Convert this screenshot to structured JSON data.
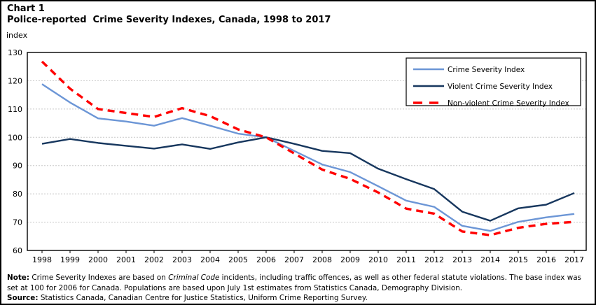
{
  "header": {
    "chart_label": "Chart 1"
  },
  "chart_data": {
    "type": "line",
    "title": "Police-reported  Crime Severity Indexes, Canada, 1998 to 2017",
    "ylabel": "index",
    "xlabel": "",
    "x": [
      1998,
      1999,
      2000,
      2001,
      2002,
      2003,
      2004,
      2005,
      2006,
      2007,
      2008,
      2009,
      2010,
      2011,
      2012,
      2013,
      2014,
      2015,
      2016,
      2017
    ],
    "ylim": [
      60,
      130
    ],
    "ytick_step": 10,
    "grid": "horizontal-dotted",
    "legend_position": "top-right",
    "series": [
      {
        "name": "Crime Severity Index",
        "color": "#6C96D6",
        "style": "solid",
        "values": [
          118.8,
          112.3,
          106.7,
          105.6,
          104.1,
          106.8,
          104.1,
          101.3,
          100.0,
          95.2,
          90.4,
          87.7,
          82.7,
          77.6,
          75.4,
          68.7,
          66.9,
          70.1,
          71.7,
          72.9
        ]
      },
      {
        "name": "Violent Crime Severity Index",
        "color": "#17375E",
        "style": "solid",
        "values": [
          97.7,
          99.4,
          98.0,
          97.0,
          96.0,
          97.5,
          95.9,
          98.2,
          100.0,
          97.7,
          95.2,
          94.4,
          88.9,
          85.2,
          81.7,
          73.7,
          70.5,
          74.9,
          76.2,
          80.3
        ]
      },
      {
        "name": "Non-violent Crime Severity Index",
        "color": "#FF0000",
        "style": "dashed",
        "values": [
          126.8,
          117.2,
          110.0,
          108.6,
          107.2,
          110.3,
          107.5,
          102.8,
          100.0,
          94.3,
          88.6,
          85.3,
          80.5,
          74.8,
          73.0,
          66.7,
          65.4,
          68.0,
          69.4,
          70.1
        ]
      }
    ]
  },
  "note": {
    "label": "Note:",
    "part1": " Crime Severity Indexes are based on ",
    "italic": "Criminal Code",
    "part2": " incidents, including traffic offences, as well as other federal statute violations. The base index was set at 100 for 2006 for Canada. Populations are based upon July 1st estimates from Statistics Canada, Demography Division."
  },
  "source": {
    "label": "Source:",
    "text": " Statistics Canada, Canadian Centre for Justice Statistics, Uniform Crime Reporting Survey."
  }
}
